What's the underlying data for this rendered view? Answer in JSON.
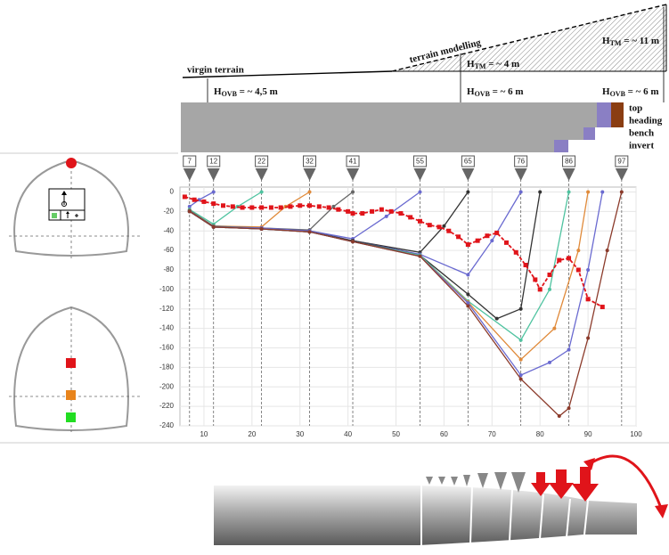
{
  "diagram": {
    "virgin_terrain": "virgin terrain",
    "terrain_modelling": "terrain modelling",
    "h_tm_11": {
      "symbol": "H",
      "sub": "TM",
      "value": " = ~ 11 m"
    },
    "h_tm_4": {
      "symbol": "H",
      "sub": "TM",
      "value": " = ~ 4 m"
    },
    "h_ovb_45": {
      "symbol": "H",
      "sub": "OVB",
      "value": " = ~ 4,5 m"
    },
    "h_ovb_6a": {
      "symbol": "H",
      "sub": "OVB",
      "value": " = ~ 6 m"
    },
    "h_ovb_6b": {
      "symbol": "H",
      "sub": "OVB",
      "value": " = ~ 6 m"
    },
    "top_heading": [
      "top",
      "heading"
    ],
    "bench": "bench",
    "invert": "invert"
  },
  "chart_data": {
    "type": "line",
    "xlim": [
      5,
      100
    ],
    "ylim": [
      -240,
      5
    ],
    "xticks": [
      10,
      20,
      30,
      40,
      50,
      60,
      70,
      80,
      90,
      100
    ],
    "yticks": [
      0,
      -20,
      -40,
      -60,
      -80,
      -100,
      -120,
      -140,
      -160,
      -180,
      -200,
      -220,
      -240
    ],
    "grid": true,
    "section_markers": [
      7,
      12,
      22,
      32,
      41,
      55,
      65,
      76,
      86,
      97
    ],
    "series": [
      {
        "color": "#6a6ad0",
        "x": [
          7,
          9,
          12
        ],
        "values": [
          -15,
          -8,
          0
        ]
      },
      {
        "color": "#4fc3a0",
        "x": [
          7,
          12,
          17,
          22
        ],
        "values": [
          -18,
          -33,
          -15,
          0
        ]
      },
      {
        "color": "#e08a3a",
        "x": [
          7,
          12,
          22,
          27,
          32
        ],
        "values": [
          -19,
          -35,
          -36,
          -15,
          0
        ]
      },
      {
        "color": "#666666",
        "x": [
          7,
          12,
          22,
          32,
          37,
          41
        ],
        "values": [
          -19,
          -35,
          -37,
          -39,
          -15,
          0
        ]
      },
      {
        "color": "#6a6ad0",
        "x": [
          7,
          12,
          22,
          32,
          41,
          48,
          55
        ],
        "values": [
          -20,
          -36,
          -37,
          -40,
          -48,
          -25,
          0
        ]
      },
      {
        "color": "#333333",
        "x": [
          7,
          12,
          22,
          32,
          41,
          55,
          60,
          65
        ],
        "values": [
          -20,
          -36,
          -38,
          -40,
          -50,
          -62,
          -35,
          0
        ]
      },
      {
        "color": "#6a6ad0",
        "x": [
          7,
          12,
          22,
          32,
          41,
          55,
          65,
          70,
          76
        ],
        "values": [
          -20,
          -36,
          -38,
          -40,
          -50,
          -64,
          -85,
          -50,
          0
        ]
      },
      {
        "color": "#333333",
        "x": [
          7,
          12,
          22,
          32,
          41,
          55,
          65,
          71,
          76,
          80
        ],
        "values": [
          -20,
          -36,
          -38,
          -41,
          -50,
          -65,
          -105,
          -130,
          -120,
          0
        ]
      },
      {
        "color": "#4fc3a0",
        "x": [
          7,
          12,
          22,
          32,
          41,
          55,
          65,
          76,
          82,
          86
        ],
        "values": [
          -20,
          -36,
          -38,
          -41,
          -51,
          -65,
          -112,
          -152,
          -100,
          0
        ]
      },
      {
        "color": "#e08a3a",
        "x": [
          7,
          12,
          22,
          32,
          41,
          55,
          65,
          76,
          83,
          88,
          90
        ],
        "values": [
          -20,
          -36,
          -38,
          -41,
          -51,
          -66,
          -113,
          -172,
          -140,
          -60,
          0
        ]
      },
      {
        "color": "#6a6ad0",
        "x": [
          7,
          12,
          22,
          32,
          41,
          55,
          65,
          76,
          82,
          86,
          90,
          93
        ],
        "values": [
          -20,
          -36,
          -38,
          -41,
          -51,
          -66,
          -114,
          -188,
          -175,
          -162,
          -80,
          0
        ]
      },
      {
        "color": "#8b3a2a",
        "x": [
          7,
          12,
          22,
          32,
          41,
          55,
          65,
          76,
          84,
          86,
          90,
          94,
          97
        ],
        "values": [
          -20,
          -36,
          -38,
          -41,
          -51,
          -66,
          -117,
          -192,
          -230,
          -222,
          -150,
          -60,
          0
        ]
      },
      {
        "color": "#e0141a",
        "line_style": "dashed",
        "marker": "square",
        "x": [
          6,
          8,
          10,
          12,
          14,
          16,
          18,
          20,
          22,
          24,
          26,
          28,
          30,
          32,
          34,
          36,
          38,
          40,
          41,
          43,
          45,
          47,
          49,
          51,
          53,
          55,
          57,
          59,
          61,
          63,
          65,
          67,
          69,
          71,
          73,
          75,
          77,
          79,
          80,
          82,
          84,
          86,
          88,
          90,
          93
        ],
        "values": [
          -5,
          -8,
          -10,
          -12,
          -14,
          -15,
          -16,
          -16,
          -16,
          -16,
          -16,
          -15,
          -14,
          -14,
          -15,
          -16,
          -18,
          -20,
          -22,
          -22,
          -20,
          -18,
          -20,
          -22,
          -26,
          -30,
          -34,
          -36,
          -40,
          -46,
          -54,
          -50,
          -45,
          -42,
          -52,
          -62,
          -75,
          -90,
          -100,
          -85,
          -70,
          -68,
          -80,
          -110,
          -118
        ]
      }
    ]
  }
}
